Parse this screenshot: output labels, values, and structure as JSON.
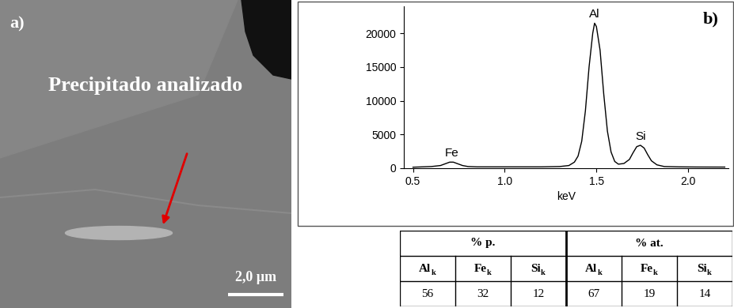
{
  "panel_a": {
    "label": "a)",
    "annotation": "Precipitado analizado",
    "scale_bar": "2,0 µm"
  },
  "chart_data": {
    "type": "line",
    "panel_label": "b)",
    "x_label": "keV",
    "color": "#000000",
    "x": [
      0.5,
      0.55,
      0.6,
      0.65,
      0.68,
      0.7,
      0.72,
      0.74,
      0.77,
      0.8,
      0.85,
      0.9,
      1.0,
      1.1,
      1.2,
      1.3,
      1.35,
      1.38,
      1.4,
      1.42,
      1.44,
      1.46,
      1.48,
      1.49,
      1.5,
      1.52,
      1.54,
      1.56,
      1.58,
      1.6,
      1.62,
      1.65,
      1.68,
      1.7,
      1.72,
      1.74,
      1.76,
      1.78,
      1.8,
      1.83,
      1.87,
      1.95,
      2.05,
      2.2
    ],
    "values": [
      150,
      200,
      250,
      400,
      700,
      900,
      900,
      700,
      400,
      250,
      200,
      200,
      200,
      200,
      200,
      250,
      400,
      900,
      1800,
      4000,
      8500,
      15000,
      20000,
      21500,
      21000,
      17500,
      11000,
      5500,
      2400,
      1000,
      600,
      700,
      1300,
      2300,
      3200,
      3400,
      3000,
      2000,
      1100,
      500,
      250,
      200,
      180,
      170
    ],
    "xlim": [
      0.45,
      2.22
    ],
    "xticks": [
      0.5,
      1.0,
      1.5,
      2.0
    ],
    "ylim": [
      0,
      24000
    ],
    "yticks": [
      0,
      5000,
      10000,
      15000,
      20000
    ],
    "annotations": [
      {
        "text": "Fe",
        "x": 0.71
      },
      {
        "text": "Al",
        "x": 1.49
      },
      {
        "text": "Si",
        "x": 1.74
      }
    ]
  },
  "table": {
    "groups": [
      {
        "title": "% p.",
        "columns": [
          {
            "element": "Al",
            "subscript": "k"
          },
          {
            "element": "Fe",
            "subscript": "k"
          },
          {
            "element": "Si",
            "subscript": "k"
          }
        ],
        "values": [
          56,
          32,
          12
        ]
      },
      {
        "title": "% at.",
        "columns": [
          {
            "element": "Al",
            "subscript": "k"
          },
          {
            "element": "Fe",
            "subscript": "k"
          },
          {
            "element": "Si",
            "subscript": "k"
          }
        ],
        "values": [
          67,
          19,
          14
        ]
      }
    ]
  }
}
